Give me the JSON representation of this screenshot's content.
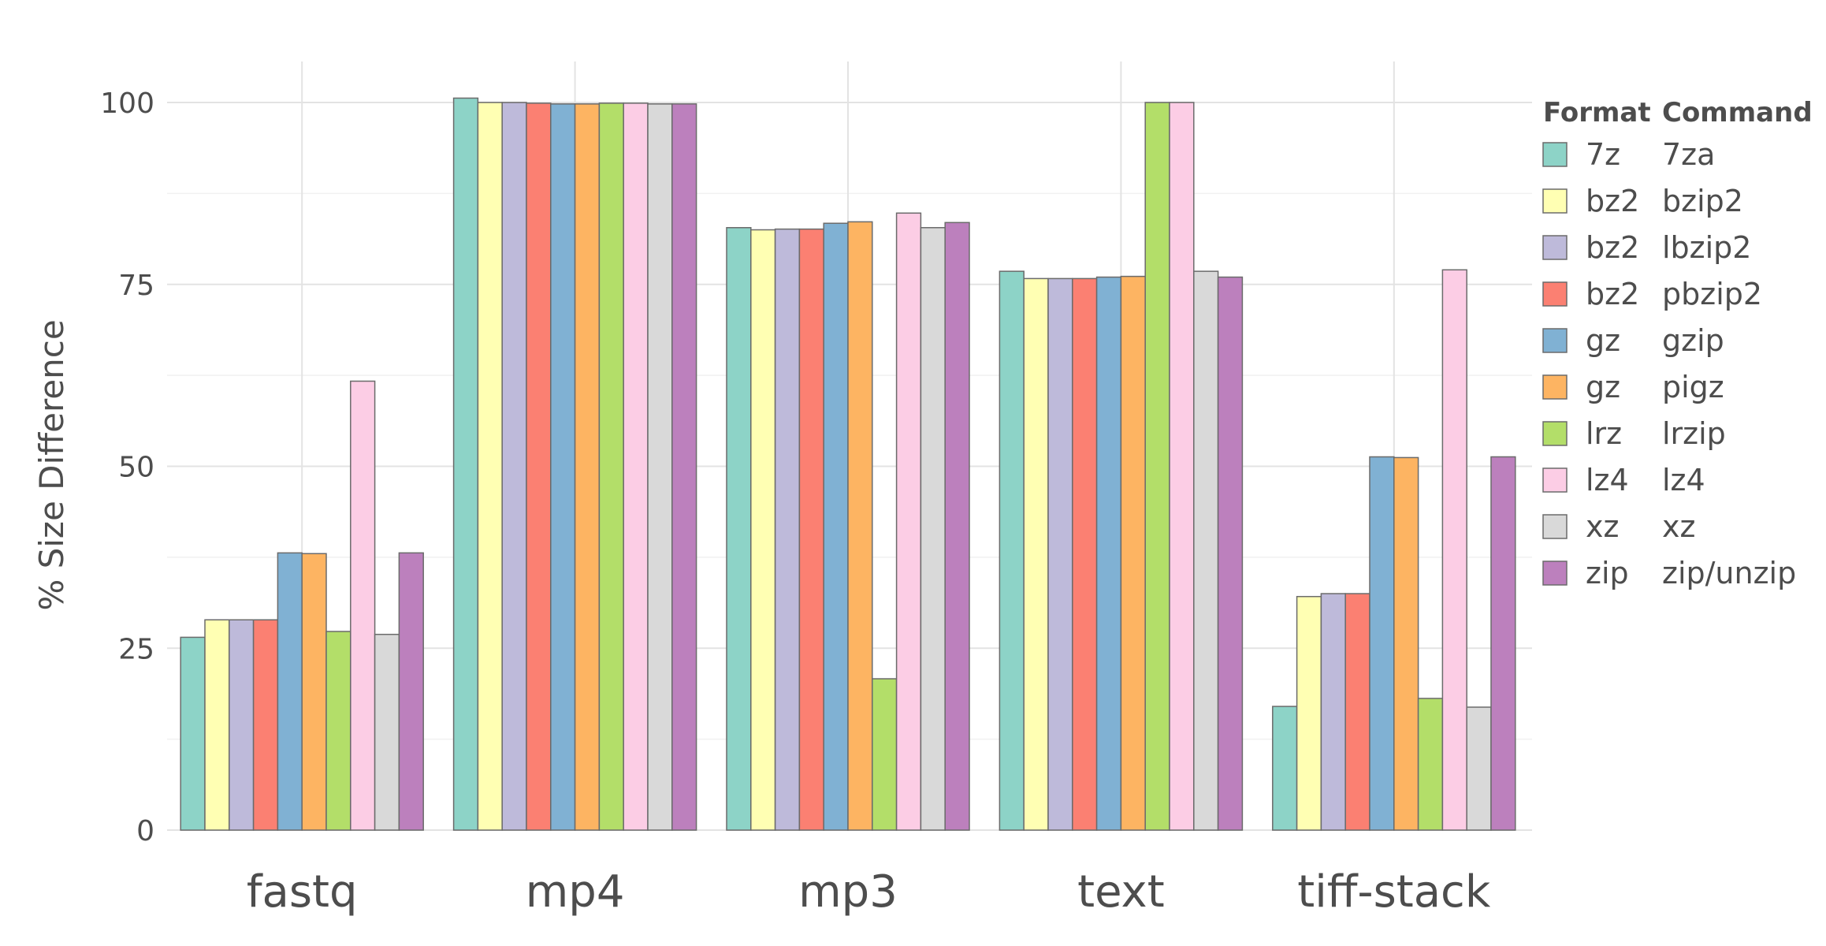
{
  "chart_data": {
    "type": "bar",
    "ylabel": "% Size Difference",
    "xlabel": "",
    "title": "",
    "ylim": [
      0,
      105
    ],
    "yticks": [
      0,
      25,
      50,
      75,
      100
    ],
    "grid": true,
    "legend_placement": "right",
    "categories": [
      "fastq",
      "mp4",
      "mp3",
      "text",
      "tiff-stack"
    ],
    "legend_headers": {
      "format": "Format",
      "command": "Command"
    },
    "series": [
      {
        "format": "7z",
        "command": "7za",
        "color": "#8dd3c7",
        "values": [
          26.5,
          100.6,
          82.8,
          76.8,
          17.0
        ]
      },
      {
        "format": "bz2",
        "command": "bzip2",
        "color": "#ffffb3",
        "values": [
          28.9,
          100.0,
          82.5,
          75.8,
          32.1
        ]
      },
      {
        "format": "bz2",
        "command": "lbzip2",
        "color": "#bebada",
        "values": [
          28.9,
          100.0,
          82.6,
          75.8,
          32.5
        ]
      },
      {
        "format": "bz2",
        "command": "pbzip2",
        "color": "#fb8072",
        "values": [
          28.9,
          99.9,
          82.6,
          75.8,
          32.5
        ]
      },
      {
        "format": "gz",
        "command": "gzip",
        "color": "#80b1d3",
        "values": [
          38.1,
          99.8,
          83.4,
          76.0,
          51.3
        ]
      },
      {
        "format": "gz",
        "command": "pigz",
        "color": "#fdb462",
        "values": [
          38.0,
          99.8,
          83.6,
          76.1,
          51.2
        ]
      },
      {
        "format": "lrz",
        "command": "lrzip",
        "color": "#b3de69",
        "values": [
          27.3,
          99.9,
          20.8,
          100.0,
          18.1
        ]
      },
      {
        "format": "lz4",
        "command": "lz4",
        "color": "#fccde5",
        "values": [
          61.7,
          99.9,
          84.8,
          100.0,
          77.0
        ]
      },
      {
        "format": "xz",
        "command": "xz",
        "color": "#d9d9d9",
        "values": [
          26.9,
          99.8,
          82.8,
          76.8,
          16.9
        ]
      },
      {
        "format": "zip",
        "command": "zip/unzip",
        "color": "#bc80bd",
        "values": [
          38.1,
          99.8,
          83.5,
          76.0,
          51.3
        ]
      }
    ]
  }
}
